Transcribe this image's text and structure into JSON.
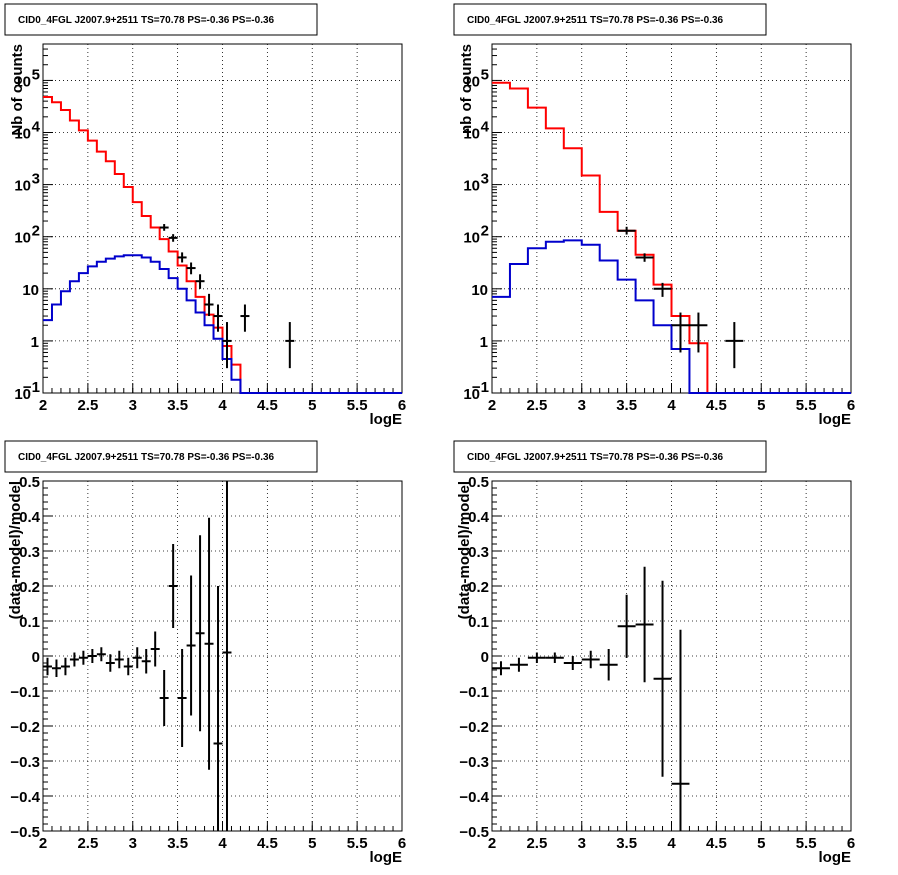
{
  "chart_data": [
    {
      "type": "histogram",
      "title": "CID0_4FGL J2007.9+2511 TS=70.78 PS=-0.36 PS=-0.36",
      "xlabel": "logE",
      "ylabel": "Nb of counts",
      "xlim": [
        2,
        6
      ],
      "ylim": [
        0.1,
        500000
      ],
      "yscale": "log",
      "grid": true,
      "x_ticks": [
        "2",
        "2.5",
        "3",
        "3.5",
        "4",
        "4.5",
        "5",
        "5.5",
        "6"
      ],
      "y_ticks": [
        {
          "value": 0.1,
          "label": "10",
          "exp": "−1"
        },
        {
          "value": 1,
          "label": "1",
          "exp": ""
        },
        {
          "value": 10,
          "label": "10",
          "exp": ""
        },
        {
          "value": 100,
          "label": "10",
          "exp": "2"
        },
        {
          "value": 1000,
          "label": "10",
          "exp": "3"
        },
        {
          "value": 10000,
          "label": "10",
          "exp": "4"
        },
        {
          "value": 100000,
          "label": "10",
          "exp": "5"
        }
      ],
      "bin_width": 0.1,
      "bin_edges_start": 2.0,
      "series": [
        {
          "color": "#ff0000",
          "kind": "step",
          "values": [
            48000,
            38000,
            27000,
            17000,
            11000,
            7000,
            4300,
            2800,
            1600,
            900,
            460,
            250,
            150,
            90,
            52,
            28,
            14,
            7,
            3.2,
            1.8,
            0.8,
            0.35,
            0.1,
            0.1,
            0.1,
            0.1,
            0.1,
            0.1,
            0.1,
            0.1,
            0.1,
            0.1,
            0.1,
            0.1,
            0.1,
            0.1,
            0.1,
            0.1,
            0.1,
            0.1
          ]
        },
        {
          "color": "#0000cc",
          "kind": "step",
          "values": [
            2.5,
            5,
            9,
            14,
            20,
            27,
            33,
            38,
            42,
            44,
            44,
            40,
            33,
            24,
            16,
            10,
            6,
            3.5,
            2,
            1.1,
            0.45,
            0.18,
            0.1,
            0.1,
            0.1,
            0.1,
            0.1,
            0.1,
            0.1,
            0.1,
            0.1,
            0.1,
            0.1,
            0.1,
            0.1,
            0.1,
            0.1,
            0.1,
            0.1,
            0.1
          ]
        }
      ],
      "points": [
        {
          "x": 3.35,
          "y": 150,
          "lo": 130,
          "hi": 175
        },
        {
          "x": 3.45,
          "y": 95,
          "lo": 80,
          "hi": 112
        },
        {
          "x": 3.55,
          "y": 40,
          "lo": 32,
          "hi": 50
        },
        {
          "x": 3.65,
          "y": 25,
          "lo": 19,
          "hi": 32
        },
        {
          "x": 3.75,
          "y": 14,
          "lo": 10,
          "hi": 19
        },
        {
          "x": 3.85,
          "y": 5,
          "lo": 3,
          "hi": 8
        },
        {
          "x": 3.95,
          "y": 3,
          "lo": 1.5,
          "hi": 5
        },
        {
          "x": 4.05,
          "y": 1,
          "lo": 0.3,
          "hi": 2.3
        },
        {
          "x": 4.25,
          "y": 3,
          "lo": 1.5,
          "hi": 5
        },
        {
          "x": 4.75,
          "y": 1,
          "lo": 0.3,
          "hi": 2.3
        }
      ]
    },
    {
      "type": "histogram",
      "title": "CID0_4FGL J2007.9+2511 TS=70.78 PS=-0.36 PS=-0.36",
      "xlabel": "logE",
      "ylabel": "nb of counts",
      "xlim": [
        2,
        6
      ],
      "ylim": [
        0.1,
        500000
      ],
      "yscale": "log",
      "grid": true,
      "x_ticks": [
        "2",
        "2.5",
        "3",
        "3.5",
        "4",
        "4.5",
        "5",
        "5.5",
        "6"
      ],
      "y_ticks": [
        {
          "value": 0.1,
          "label": "10",
          "exp": "−1"
        },
        {
          "value": 1,
          "label": "1",
          "exp": ""
        },
        {
          "value": 10,
          "label": "10",
          "exp": ""
        },
        {
          "value": 100,
          "label": "10",
          "exp": "2"
        },
        {
          "value": 1000,
          "label": "10",
          "exp": "3"
        },
        {
          "value": 10000,
          "label": "10",
          "exp": "4"
        },
        {
          "value": 100000,
          "label": "10",
          "exp": "5"
        }
      ],
      "bin_width": 0.2,
      "bin_edges_start": 2.0,
      "series": [
        {
          "color": "#ff0000",
          "kind": "step",
          "values": [
            90000,
            70000,
            30000,
            12000,
            5000,
            1500,
            300,
            130,
            45,
            12,
            3,
            0.9,
            0.1,
            0.1,
            0.1,
            0.1,
            0.1,
            0.1,
            0.1,
            0.1
          ]
        },
        {
          "color": "#0000cc",
          "kind": "step",
          "values": [
            7,
            30,
            60,
            80,
            85,
            70,
            35,
            15,
            6,
            2,
            0.7,
            0.1,
            0.1,
            0.1,
            0.1,
            0.1,
            0.1,
            0.1,
            0.1,
            0.1
          ]
        }
      ],
      "points": [
        {
          "x": 3.5,
          "y": 130,
          "lo": 110,
          "hi": 155
        },
        {
          "x": 3.7,
          "y": 40,
          "lo": 33,
          "hi": 48
        },
        {
          "x": 3.9,
          "y": 10,
          "lo": 7,
          "hi": 13
        },
        {
          "x": 4.1,
          "y": 2,
          "lo": 0.6,
          "hi": 3.5
        },
        {
          "x": 4.3,
          "y": 2,
          "lo": 0.6,
          "hi": 3.5
        },
        {
          "x": 4.7,
          "y": 1,
          "lo": 0.3,
          "hi": 2.3
        }
      ]
    },
    {
      "type": "scatter",
      "title": "CID0_4FGL J2007.9+2511 TS=70.78 PS=-0.36 PS=-0.36",
      "xlabel": "logE",
      "ylabel": "(data-model)/model",
      "xlim": [
        2,
        6
      ],
      "ylim": [
        -0.5,
        0.5
      ],
      "yscale": "linear",
      "grid": true,
      "x_ticks": [
        "2",
        "2.5",
        "3",
        "3.5",
        "4",
        "4.5",
        "5",
        "5.5",
        "6"
      ],
      "y_ticks": [
        "−0.5",
        "−0.4",
        "−0.3",
        "−0.2",
        "−0.1",
        "0",
        "0.1",
        "0.2",
        "0.3",
        "0.4",
        "0.5"
      ],
      "bin_width": 0.1,
      "points": [
        {
          "x": 2.05,
          "y": -0.03,
          "err": 0.025
        },
        {
          "x": 2.15,
          "y": -0.035,
          "err": 0.025
        },
        {
          "x": 2.25,
          "y": -0.03,
          "err": 0.025
        },
        {
          "x": 2.35,
          "y": -0.01,
          "err": 0.02
        },
        {
          "x": 2.45,
          "y": -0.005,
          "err": 0.02
        },
        {
          "x": 2.55,
          "y": 0.0,
          "err": 0.02
        },
        {
          "x": 2.65,
          "y": 0.005,
          "err": 0.02
        },
        {
          "x": 2.75,
          "y": -0.02,
          "err": 0.025
        },
        {
          "x": 2.85,
          "y": -0.01,
          "err": 0.025
        },
        {
          "x": 2.95,
          "y": -0.03,
          "err": 0.025
        },
        {
          "x": 3.05,
          "y": -0.005,
          "err": 0.03
        },
        {
          "x": 3.15,
          "y": -0.015,
          "err": 0.035
        },
        {
          "x": 3.25,
          "y": 0.02,
          "err": 0.05
        },
        {
          "x": 3.35,
          "y": -0.12,
          "err": 0.08
        },
        {
          "x": 3.45,
          "y": 0.2,
          "err": 0.12
        },
        {
          "x": 3.55,
          "y": -0.12,
          "err": 0.14
        },
        {
          "x": 3.65,
          "y": 0.03,
          "err": 0.2
        },
        {
          "x": 3.75,
          "y": 0.065,
          "err": 0.28
        },
        {
          "x": 3.85,
          "y": 0.035,
          "err": 0.36
        },
        {
          "x": 3.95,
          "y": -0.25,
          "err": 0.45
        },
        {
          "x": 4.05,
          "y": 0.01,
          "err": 0.55
        }
      ]
    },
    {
      "type": "scatter",
      "title": "CID0_4FGL J2007.9+2511 TS=70.78 PS=-0.36 PS=-0.36",
      "xlabel": "logE",
      "ylabel": "(data-model)/model",
      "xlim": [
        2,
        6
      ],
      "ylim": [
        -0.5,
        0.5
      ],
      "yscale": "linear",
      "grid": true,
      "x_ticks": [
        "2",
        "2.5",
        "3",
        "3.5",
        "4",
        "4.5",
        "5",
        "5.5",
        "6"
      ],
      "y_ticks": [
        "−0.5",
        "−0.4",
        "−0.3",
        "−0.2",
        "−0.1",
        "0",
        "0.1",
        "0.2",
        "0.3",
        "0.4",
        "0.5"
      ],
      "bin_width": 0.2,
      "points": [
        {
          "x": 2.1,
          "y": -0.035,
          "err": 0.02
        },
        {
          "x": 2.3,
          "y": -0.025,
          "err": 0.02
        },
        {
          "x": 2.5,
          "y": -0.005,
          "err": 0.015
        },
        {
          "x": 2.7,
          "y": -0.005,
          "err": 0.015
        },
        {
          "x": 2.9,
          "y": -0.02,
          "err": 0.02
        },
        {
          "x": 3.1,
          "y": -0.01,
          "err": 0.025
        },
        {
          "x": 3.3,
          "y": -0.025,
          "err": 0.045
        },
        {
          "x": 3.5,
          "y": 0.085,
          "err": 0.09
        },
        {
          "x": 3.7,
          "y": 0.09,
          "err": 0.165
        },
        {
          "x": 3.9,
          "y": -0.065,
          "err": 0.28
        },
        {
          "x": 4.1,
          "y": -0.365,
          "err": 0.44
        }
      ]
    }
  ]
}
